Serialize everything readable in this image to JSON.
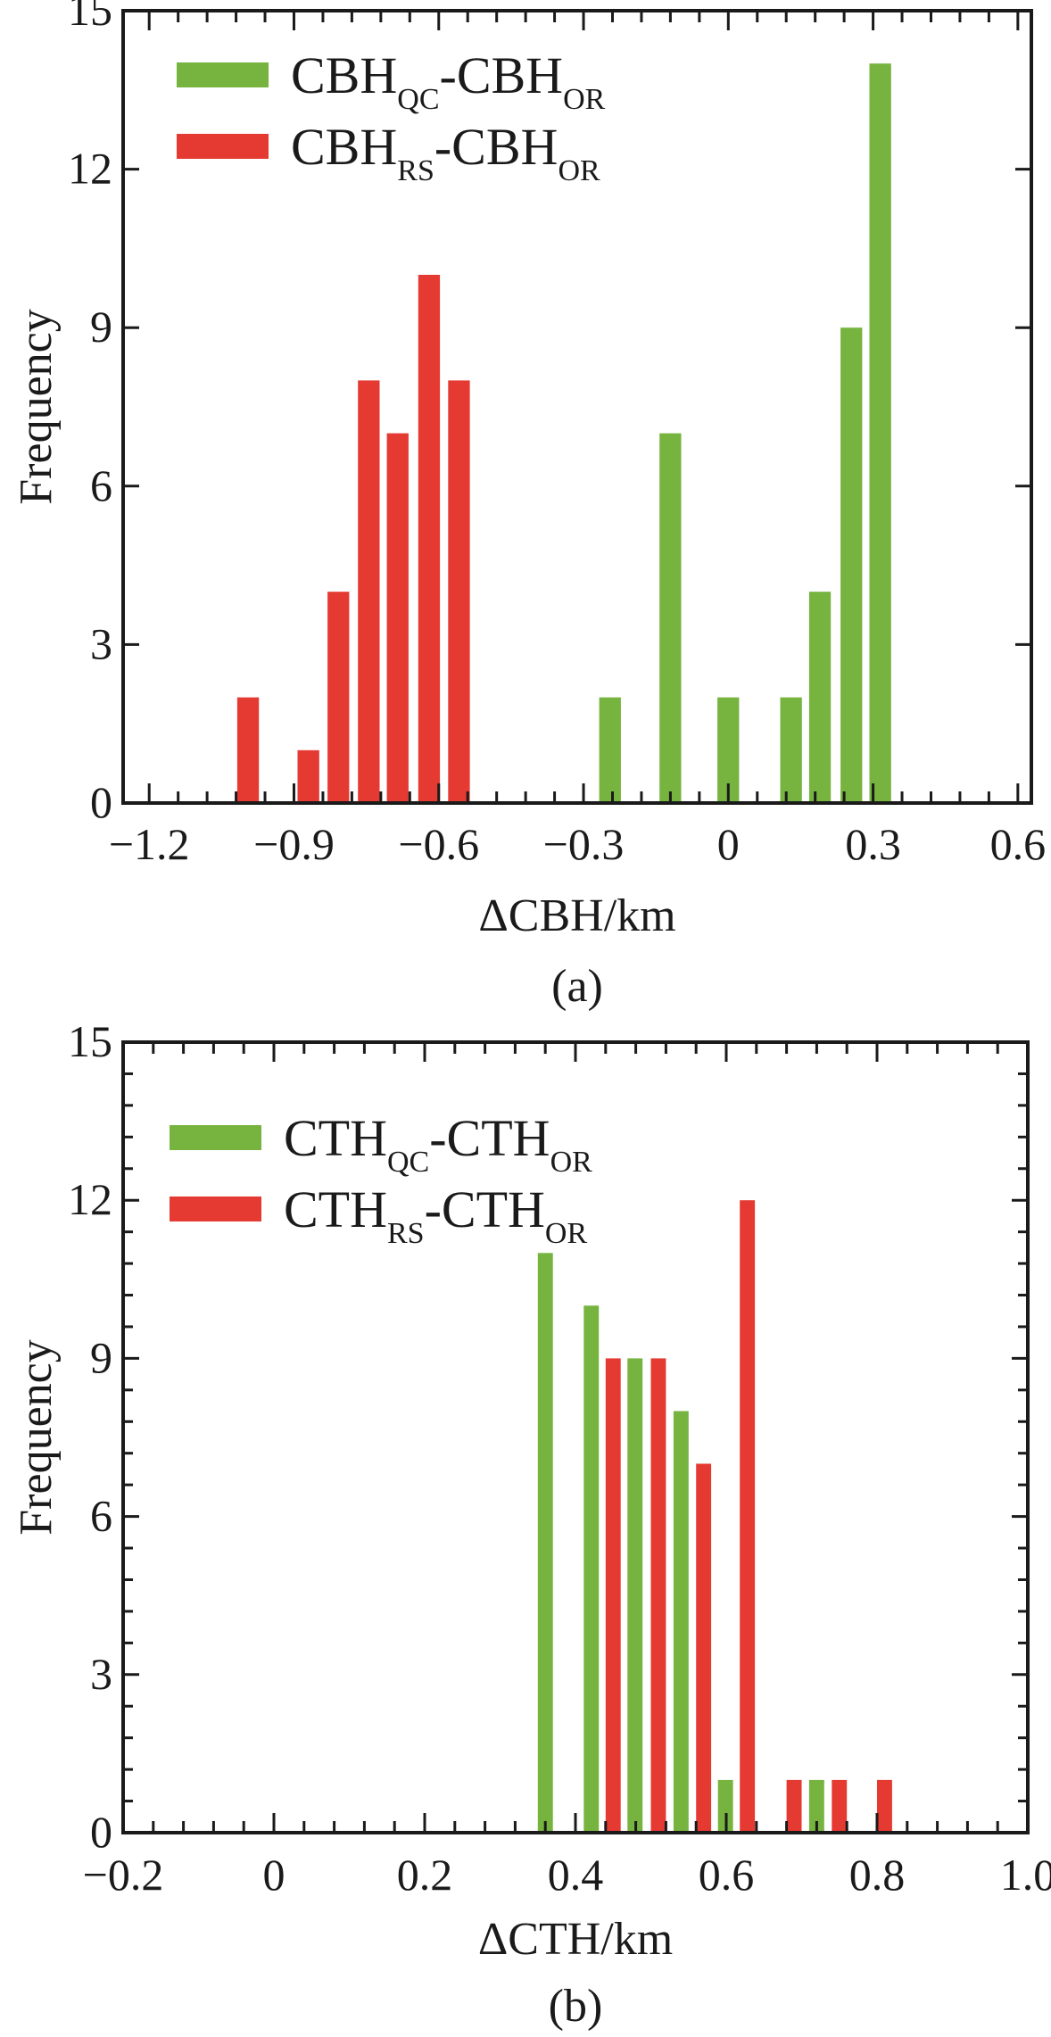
{
  "chart_data": [
    {
      "type": "bar",
      "panel_label": "(a)",
      "xlabel": "ΔCBH/km",
      "ylabel": "Frequency",
      "xlim": [
        -1.254,
        0.628
      ],
      "ylim": [
        0,
        15
      ],
      "xticks": [
        -1.2,
        -0.9,
        -0.6,
        -0.3,
        0,
        0.3,
        0.6
      ],
      "xtick_labels": [
        "−1.2",
        "−0.9",
        "−0.6",
        "−0.3",
        "0",
        "0.3",
        "0.6"
      ],
      "x_minor_step": 0.06,
      "yticks": [
        0,
        3,
        6,
        9,
        12,
        15
      ],
      "ytick_labels": [
        "0",
        "3",
        "6",
        "9",
        "12",
        "15"
      ],
      "legend_position": "top-left",
      "bar_width": 0.045,
      "series": [
        {
          "name": "CBH_QC-CBH_OR",
          "label_main": "CBH",
          "label_sub1": "QC",
          "label_mid": "-CBH",
          "label_sub2": "OR",
          "color": "#76b43f",
          "x": [
            -0.245,
            -0.12,
            0.0,
            0.13,
            0.19,
            0.255,
            0.315
          ],
          "values": [
            2,
            7,
            2,
            2,
            4,
            9,
            14
          ]
        },
        {
          "name": "CBH_RS-CBH_OR",
          "label_main": "CBH",
          "label_sub1": "RS",
          "label_mid": "-CBH",
          "label_sub2": "OR",
          "color": "#e53a32",
          "x": [
            -0.995,
            -0.87,
            -0.808,
            -0.745,
            -0.685,
            -0.62,
            -0.558
          ],
          "values": [
            2,
            1,
            4,
            8,
            7,
            10,
            8
          ]
        }
      ]
    },
    {
      "type": "bar",
      "panel_label": "(b)",
      "xlabel": "ΔCTH/km",
      "ylabel": "Frequency",
      "xlim": [
        -0.2,
        1.0
      ],
      "ylim": [
        0,
        15
      ],
      "xticks": [
        -0.2,
        0,
        0.2,
        0.4,
        0.6,
        0.8,
        1.0
      ],
      "xtick_labels": [
        "−0.2",
        "0",
        "0.2",
        "0.4",
        "0.6",
        "0.8",
        "1.0"
      ],
      "x_minor_step": 0.04,
      "yticks": [
        0,
        3,
        6,
        9,
        12,
        15
      ],
      "ytick_labels": [
        "0",
        "3",
        "6",
        "9",
        "12",
        "15"
      ],
      "y_minor_step": 0.6,
      "legend_position": "top-left",
      "bar_width": 0.02,
      "series": [
        {
          "name": "CTH_QC-CTH_OR",
          "label_main": "CTH",
          "label_sub1": "QC",
          "label_mid": "-CTH",
          "label_sub2": "OR",
          "color": "#76b43f",
          "x": [
            0.36,
            0.421,
            0.479,
            0.54,
            0.599,
            0.72
          ],
          "values": [
            11,
            10,
            9,
            8,
            1,
            1
          ]
        },
        {
          "name": "CTH_RS-CTH_OR",
          "label_main": "CTH",
          "label_sub1": "RS",
          "label_mid": "-CTH",
          "label_sub2": "OR",
          "color": "#e53a32",
          "x": [
            0.45,
            0.51,
            0.57,
            0.628,
            0.69,
            0.75,
            0.81
          ],
          "values": [
            9,
            9,
            7,
            12,
            1,
            1,
            1
          ]
        }
      ]
    }
  ]
}
